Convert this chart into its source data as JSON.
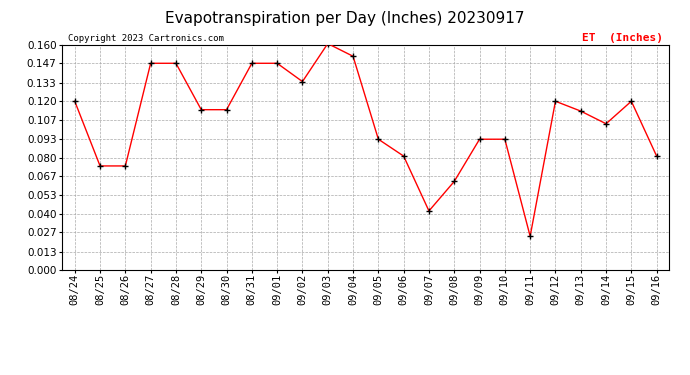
{
  "title": "Evapotranspiration per Day (Inches) 20230917",
  "copyright": "Copyright 2023 Cartronics.com",
  "legend_label": "ET  (Inches)",
  "dates": [
    "08/24",
    "08/25",
    "08/26",
    "08/27",
    "08/28",
    "08/29",
    "08/30",
    "08/31",
    "09/01",
    "09/02",
    "09/03",
    "09/04",
    "09/05",
    "09/06",
    "09/07",
    "09/08",
    "09/09",
    "09/10",
    "09/11",
    "09/12",
    "09/13",
    "09/14",
    "09/15",
    "09/16"
  ],
  "values": [
    0.12,
    0.074,
    0.074,
    0.147,
    0.147,
    0.114,
    0.114,
    0.147,
    0.147,
    0.134,
    0.161,
    0.152,
    0.093,
    0.081,
    0.042,
    0.063,
    0.093,
    0.093,
    0.024,
    0.12,
    0.113,
    0.104,
    0.12,
    0.081
  ],
  "ylim": [
    0.0,
    0.16
  ],
  "yticks": [
    0.0,
    0.013,
    0.027,
    0.04,
    0.053,
    0.067,
    0.08,
    0.093,
    0.107,
    0.12,
    0.133,
    0.147,
    0.16
  ],
  "line_color": "red",
  "marker_color": "black",
  "grid_color": "#aaaaaa",
  "bg_color": "#ffffff",
  "title_fontsize": 11,
  "label_fontsize": 8,
  "tick_fontsize": 7.5,
  "copyright_color": "black",
  "legend_color": "red"
}
